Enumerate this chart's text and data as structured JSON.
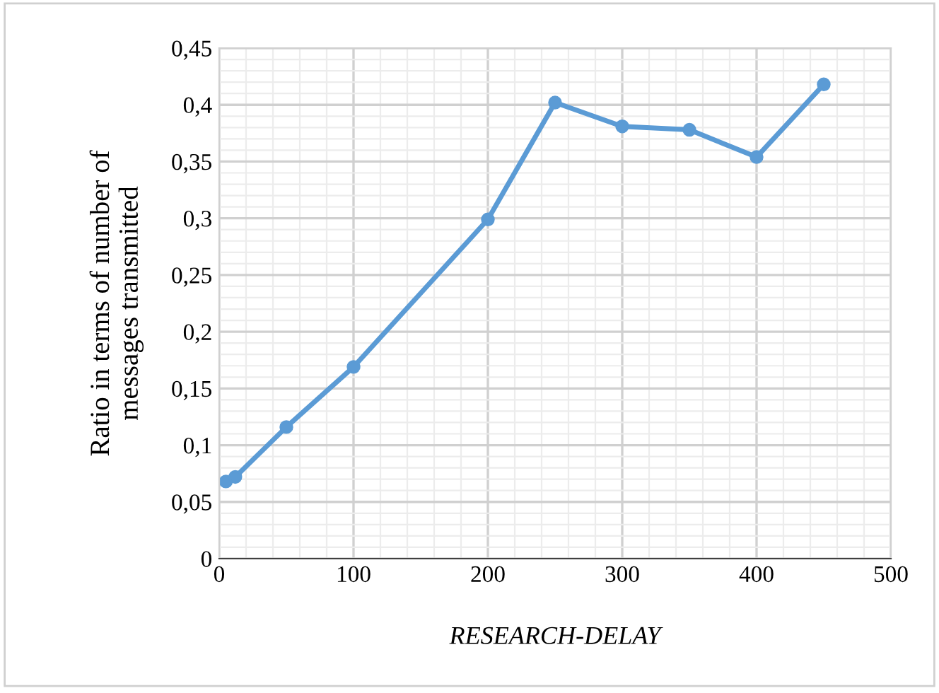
{
  "chart_data": {
    "type": "line",
    "xlabel": "RESEARCH-DELAY",
    "ylabel": "Ratio in terms of number of\nmessages transmitted",
    "x": [
      5,
      12,
      50,
      100,
      200,
      250,
      300,
      350,
      400,
      450
    ],
    "series": [
      {
        "color": "#5b9bd5",
        "values": [
          0.068,
          0.072,
          0.116,
          0.169,
          0.299,
          0.402,
          0.381,
          0.378,
          0.354,
          0.418
        ]
      }
    ],
    "xlim": [
      0,
      500
    ],
    "xticks": [
      0,
      100,
      200,
      300,
      400,
      500
    ],
    "ylim": [
      0,
      0.45
    ],
    "yticks": [
      {
        "value": 0,
        "label": "0"
      },
      {
        "value": 0.05,
        "label": "0,05"
      },
      {
        "value": 0.1,
        "label": "0,1"
      },
      {
        "value": 0.15,
        "label": "0,15"
      },
      {
        "value": 0.2,
        "label": "0,2"
      },
      {
        "value": 0.25,
        "label": "0,25"
      },
      {
        "value": 0.3,
        "label": "0,3"
      },
      {
        "value": 0.35,
        "label": "0,35"
      },
      {
        "value": 0.4,
        "label": "0,4"
      },
      {
        "value": 0.45,
        "label": "0,45"
      }
    ],
    "grid": true,
    "marker": "circle",
    "line_style": "solid",
    "legend": false
  }
}
